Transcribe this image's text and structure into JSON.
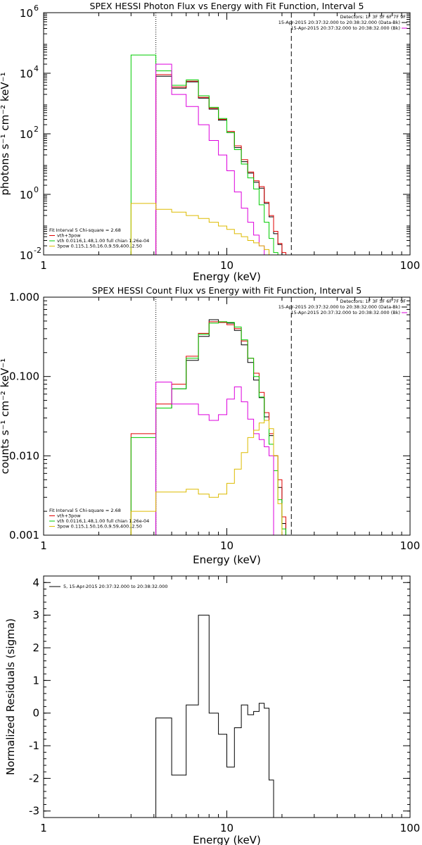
{
  "chart_data": [
    {
      "type": "line",
      "title": "SPEX HESSI Photon Flux vs Energy with Fit Function, Interval 5",
      "xlabel": "Energy (keV)",
      "ylabel": "photons s⁻¹ cm⁻² keV⁻¹",
      "xscale": "log",
      "yscale": "log",
      "xlim": [
        1,
        100
      ],
      "ylim": [
        0.01,
        1000000
      ],
      "xticks": [
        {
          "v": 1,
          "label": "1"
        },
        {
          "v": 10,
          "label": "10"
        },
        {
          "v": 100,
          "label": "100"
        }
      ],
      "yticks": [
        {
          "v": 0.01,
          "label": "10",
          "exp": "-2"
        },
        {
          "v": 1,
          "label": "10",
          "exp": "0"
        },
        {
          "v": 100,
          "label": "10",
          "exp": "2"
        },
        {
          "v": 10000,
          "label": "10",
          "exp": "4"
        },
        {
          "v": 1000000,
          "label": "10",
          "exp": "6"
        }
      ],
      "vlines": [
        {
          "x": 4.1,
          "style": "dotted"
        },
        {
          "x": 22.5,
          "style": "dashed"
        }
      ],
      "legend_top": [
        "Detectors: 1F 3F 5F 6F 7F 9F",
        "15-Apr-2015 20:37:32.000 to 20:38:32.000 (Data-Bk)",
        "15-Apr-2015 20:37:32.000 to 20:38:32.000 (Bk)"
      ],
      "legend_bottom": [
        "Fit Interval 5   Chi-square = 2.68",
        "vth+3pow",
        "vth 0.0116,1.48,1.00  full chian 1.26e-04",
        "3pow 0.115,1.50,16.0,9.59,400.,2.50"
      ],
      "bin_edges": [
        3,
        4.1,
        5,
        6,
        7,
        8,
        9,
        10,
        11,
        12,
        13,
        14,
        15,
        16,
        17,
        18,
        19,
        20,
        21,
        22.5,
        24,
        26
      ],
      "series": [
        {
          "name": "Data-Bk",
          "color": "#000000",
          "x0": 4.1,
          "values": [
            8000,
            3200,
            5200,
            1500,
            650,
            280,
            110,
            35,
            12,
            5,
            2.5,
            1.6,
            0.5,
            0.18,
            0.05,
            0.022
          ]
        },
        {
          "name": "vth+3pow",
          "color": "#e00000",
          "x0": 4.1,
          "values": [
            9000,
            3500,
            5500,
            1600,
            700,
            300,
            120,
            40,
            14,
            5.5,
            2.8,
            1.8,
            0.55,
            0.2,
            0.06,
            0.024,
            0.012
          ]
        },
        {
          "name": "vth",
          "color": "#00cc00",
          "x0": 3,
          "values": [
            40000,
            12000,
            4000,
            6000,
            1800,
            750,
            320,
            110,
            30,
            10,
            3.5,
            1.5,
            0.45,
            0.12,
            0.035,
            0.012,
            0.004
          ]
        },
        {
          "name": "Bk",
          "color": "#dd00dd",
          "x0": 4.1,
          "values": [
            20000,
            2000,
            800,
            200,
            60,
            20,
            6,
            1.2,
            0.35,
            0.12,
            0.045,
            0.02,
            0.01,
            0.005
          ]
        },
        {
          "name": "3pow",
          "color": "#ddbb00",
          "x0": 3,
          "values": [
            0.5,
            0.32,
            0.26,
            0.2,
            0.16,
            0.12,
            0.09,
            0.07,
            0.05,
            0.04,
            0.03,
            0.025,
            0.02,
            0.015,
            0.01,
            0.006,
            0.004
          ]
        }
      ]
    },
    {
      "type": "line",
      "title": "SPEX HESSI Count Flux vs Energy with Fit Function, Interval 5",
      "xlabel": "Energy (keV)",
      "ylabel": "counts s⁻¹ cm⁻² keV⁻¹",
      "xscale": "log",
      "yscale": "log",
      "xlim": [
        1,
        100
      ],
      "ylim": [
        0.001,
        1
      ],
      "xticks": [
        {
          "v": 1,
          "label": "1"
        },
        {
          "v": 10,
          "label": "10"
        },
        {
          "v": 100,
          "label": "100"
        }
      ],
      "yticks": [
        {
          "v": 0.001,
          "label": "0.001"
        },
        {
          "v": 0.01,
          "label": "0.010"
        },
        {
          "v": 0.1,
          "label": "0.100"
        },
        {
          "v": 1,
          "label": "1.000"
        }
      ],
      "vlines": [
        {
          "x": 4.1,
          "style": "dotted"
        },
        {
          "x": 22.5,
          "style": "dashed"
        }
      ],
      "legend_top": [
        "Detectors: 1F 3F 5F 6F 7F 9F",
        "15-Apr-2015 20:37:32.000 to 20:38:32.000 (Data-Bk)",
        "15-Apr-2015 20:37:32.000 to 20:38:32.000 (Bk)"
      ],
      "legend_bottom": [
        "Fit Interval 5   Chi-square = 2.68",
        "vth+3pow",
        "vth 0.0116,1.48,1.00  full chian 1.26e-04",
        "3pow 0.115,1.50,16.0,9.59,400.,2.50"
      ],
      "bin_edges": [
        3,
        4.1,
        5,
        6,
        7,
        8,
        9,
        10,
        11,
        12,
        13,
        14,
        15,
        16,
        17,
        18,
        19,
        20,
        21,
        22.5,
        24,
        26
      ],
      "series": [
        {
          "name": "Data-Bk",
          "color": "#000000",
          "x0": 4.1,
          "values": [
            0.04,
            0.07,
            0.16,
            0.32,
            0.52,
            0.48,
            0.47,
            0.38,
            0.25,
            0.15,
            0.09,
            0.054,
            0.031,
            0.018,
            0.01,
            0.004,
            0.0014
          ]
        },
        {
          "name": "vth+3pow",
          "color": "#e00000",
          "x0": 3,
          "values": [
            0.019,
            0.045,
            0.08,
            0.18,
            0.35,
            0.49,
            0.48,
            0.45,
            0.4,
            0.28,
            0.17,
            0.11,
            0.063,
            0.035,
            0.019,
            0.01,
            0.005,
            0.0017
          ]
        },
        {
          "name": "vth",
          "color": "#00cc00",
          "x0": 3,
          "values": [
            0.017,
            0.04,
            0.07,
            0.17,
            0.34,
            0.47,
            0.49,
            0.48,
            0.42,
            0.29,
            0.17,
            0.1,
            0.055,
            0.028,
            0.014,
            0.0065,
            0.0028,
            0.0012
          ]
        },
        {
          "name": "Bk",
          "color": "#dd00dd",
          "x0": 4.1,
          "values": [
            0.085,
            0.045,
            0.045,
            0.033,
            0.028,
            0.033,
            0.052,
            0.074,
            0.048,
            0.029,
            0.019,
            0.016,
            0.013,
            0.01
          ]
        },
        {
          "name": "3pow",
          "color": "#ddbb00",
          "x0": 3,
          "values": [
            0.002,
            0.0035,
            0.0035,
            0.0038,
            0.0033,
            0.003,
            0.0033,
            0.0045,
            0.0068,
            0.011,
            0.017,
            0.021,
            0.026,
            0.028,
            0.022,
            0.01,
            0.0025
          ]
        }
      ]
    },
    {
      "type": "line",
      "title": "",
      "xlabel": "Energy (keV)",
      "ylabel": "Normalized Residuals (sigma)",
      "xscale": "log",
      "yscale": "linear",
      "xlim": [
        1,
        100
      ],
      "ylim": [
        -3.2,
        4.2
      ],
      "xticks": [
        {
          "v": 1,
          "label": "1"
        },
        {
          "v": 10,
          "label": "10"
        },
        {
          "v": 100,
          "label": "100"
        }
      ],
      "yticks": [
        {
          "v": -3,
          "label": "-3"
        },
        {
          "v": -2,
          "label": "-2"
        },
        {
          "v": -1,
          "label": "-1"
        },
        {
          "v": 0,
          "label": "0"
        },
        {
          "v": 1,
          "label": "1"
        },
        {
          "v": 2,
          "label": "2"
        },
        {
          "v": 3,
          "label": "3"
        },
        {
          "v": 4,
          "label": "4"
        }
      ],
      "legend_top": [
        "5, 15-Apr-2015 20:37:32.000 to 20:38:32.000"
      ],
      "bin_edges": [
        4.1,
        5,
        6,
        7,
        8,
        9,
        10,
        11,
        12,
        13,
        14,
        15,
        16,
        17,
        18,
        19,
        20,
        21,
        22.5
      ],
      "series": [
        {
          "name": "5, 15-Apr-2015 20:37:32.000 to 20:38:32.000",
          "color": "#000000",
          "x0": 4.1,
          "values": [
            -0.15,
            -1.9,
            0.25,
            3.0,
            0.0,
            -0.65,
            -1.65,
            -0.45,
            0.25,
            -0.05,
            0.05,
            0.3,
            0.15,
            -2.05
          ]
        }
      ]
    }
  ]
}
